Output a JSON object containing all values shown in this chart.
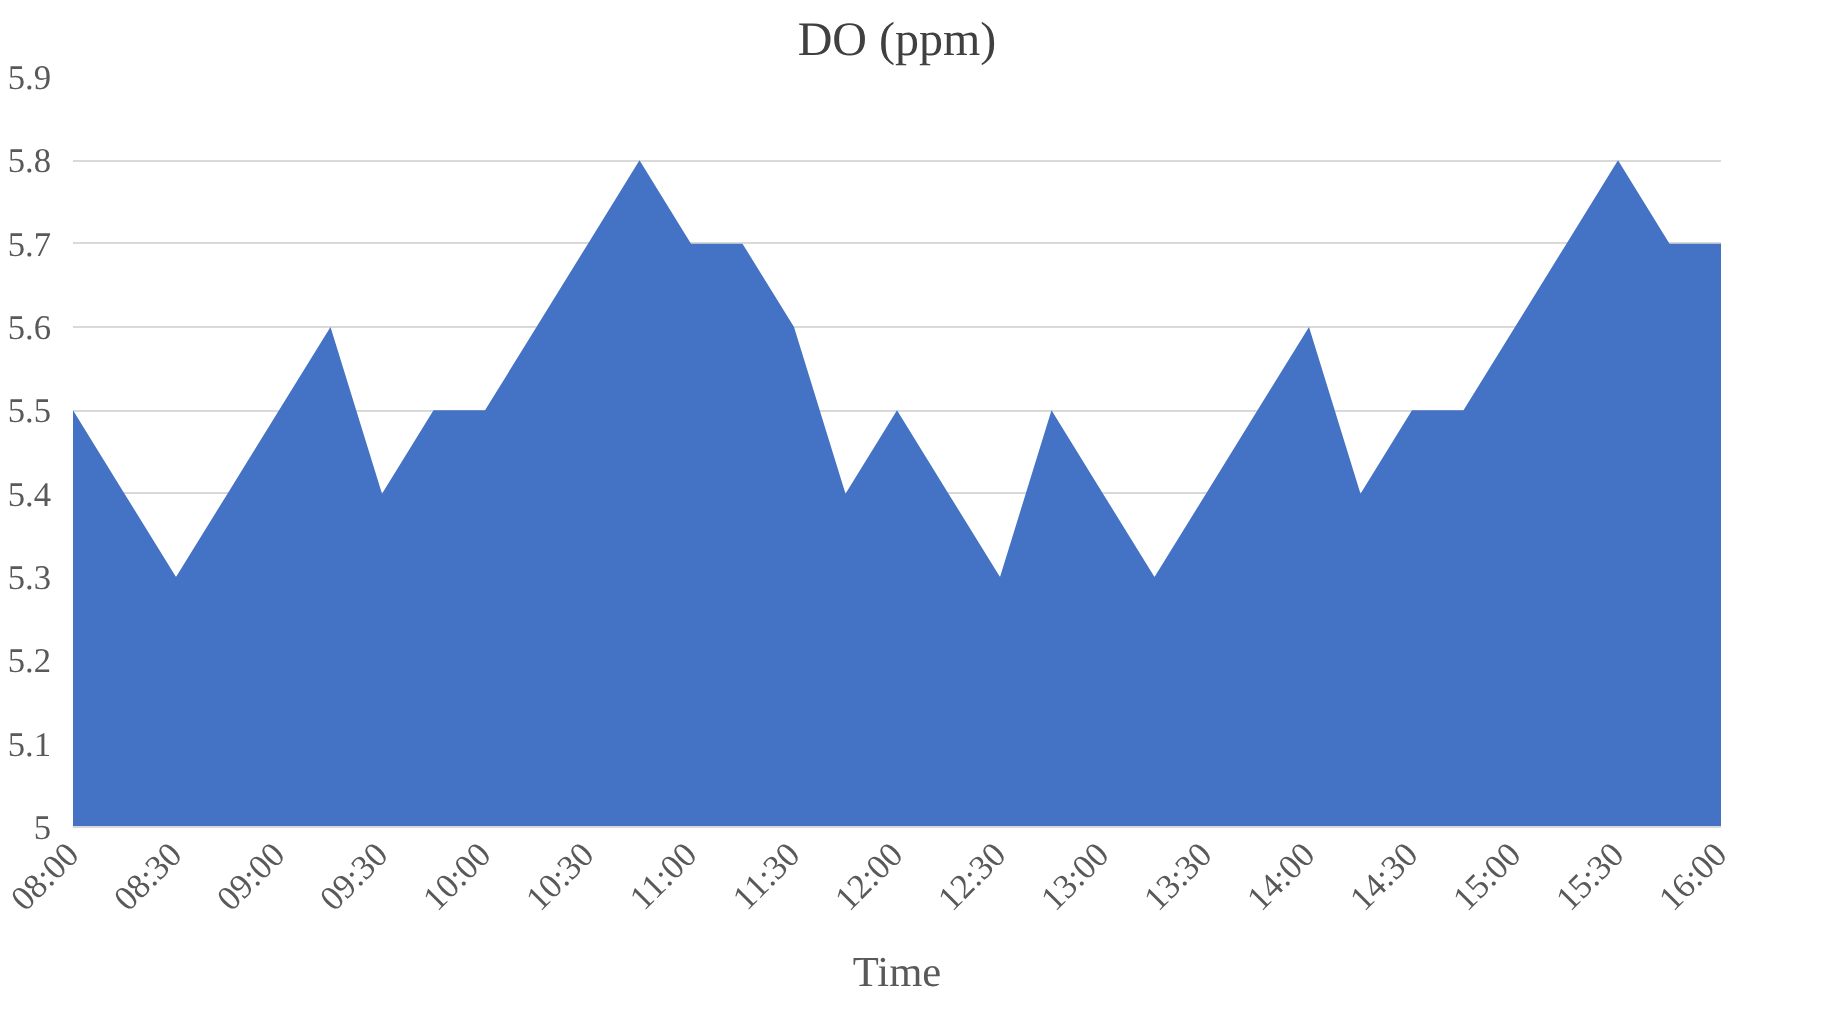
{
  "chart_data": {
    "type": "area",
    "title": "DO (ppm)",
    "xlabel": "Time",
    "x": [
      8,
      8.25,
      8.5,
      8.75,
      9,
      9.25,
      9.5,
      9.75,
      10,
      10.25,
      10.5,
      10.75,
      11,
      11.25,
      11.5,
      11.75,
      12,
      12.25,
      12.5,
      12.75,
      13,
      13.25,
      13.5,
      13.75,
      14,
      14.25,
      14.5,
      14.75,
      15,
      15.25,
      15.5,
      15.75,
      16
    ],
    "series": [
      {
        "color": "#4472c4",
        "values": [
          5.5,
          5.4,
          5.3,
          5.4,
          5.5,
          5.6,
          5.4,
          5.5,
          5.5,
          5.6,
          5.7,
          5.8,
          5.7,
          5.7,
          5.6,
          5.4,
          5.5,
          5.4,
          5.3,
          5.5,
          5.4,
          5.3,
          5.4,
          5.5,
          5.6,
          5.4,
          5.5,
          5.5,
          5.6,
          5.7,
          5.8,
          5.7,
          5.7
        ]
      }
    ],
    "xlim": [
      8,
      16
    ],
    "xticks": [
      {
        "value": 8,
        "label": "08:00"
      },
      {
        "value": 8.5,
        "label": "08:30"
      },
      {
        "value": 9,
        "label": "09:00"
      },
      {
        "value": 9.5,
        "label": "09:30"
      },
      {
        "value": 10,
        "label": "10:00"
      },
      {
        "value": 10.5,
        "label": "10:30"
      },
      {
        "value": 11,
        "label": "11:00"
      },
      {
        "value": 11.5,
        "label": "11:30"
      },
      {
        "value": 12,
        "label": "12:00"
      },
      {
        "value": 12.5,
        "label": "12:30"
      },
      {
        "value": 13,
        "label": "13:00"
      },
      {
        "value": 13.5,
        "label": "13:30"
      },
      {
        "value": 14,
        "label": "14:00"
      },
      {
        "value": 14.5,
        "label": "14:30"
      },
      {
        "value": 15,
        "label": "15:00"
      },
      {
        "value": 15.5,
        "label": "15:30"
      },
      {
        "value": 16,
        "label": "16:00"
      }
    ],
    "ylim": [
      5,
      5.9
    ],
    "yticks": [
      5,
      5.1,
      5.2,
      5.3,
      5.4,
      5.5,
      5.6,
      5.7,
      5.8,
      5.9
    ],
    "grid": "y"
  }
}
